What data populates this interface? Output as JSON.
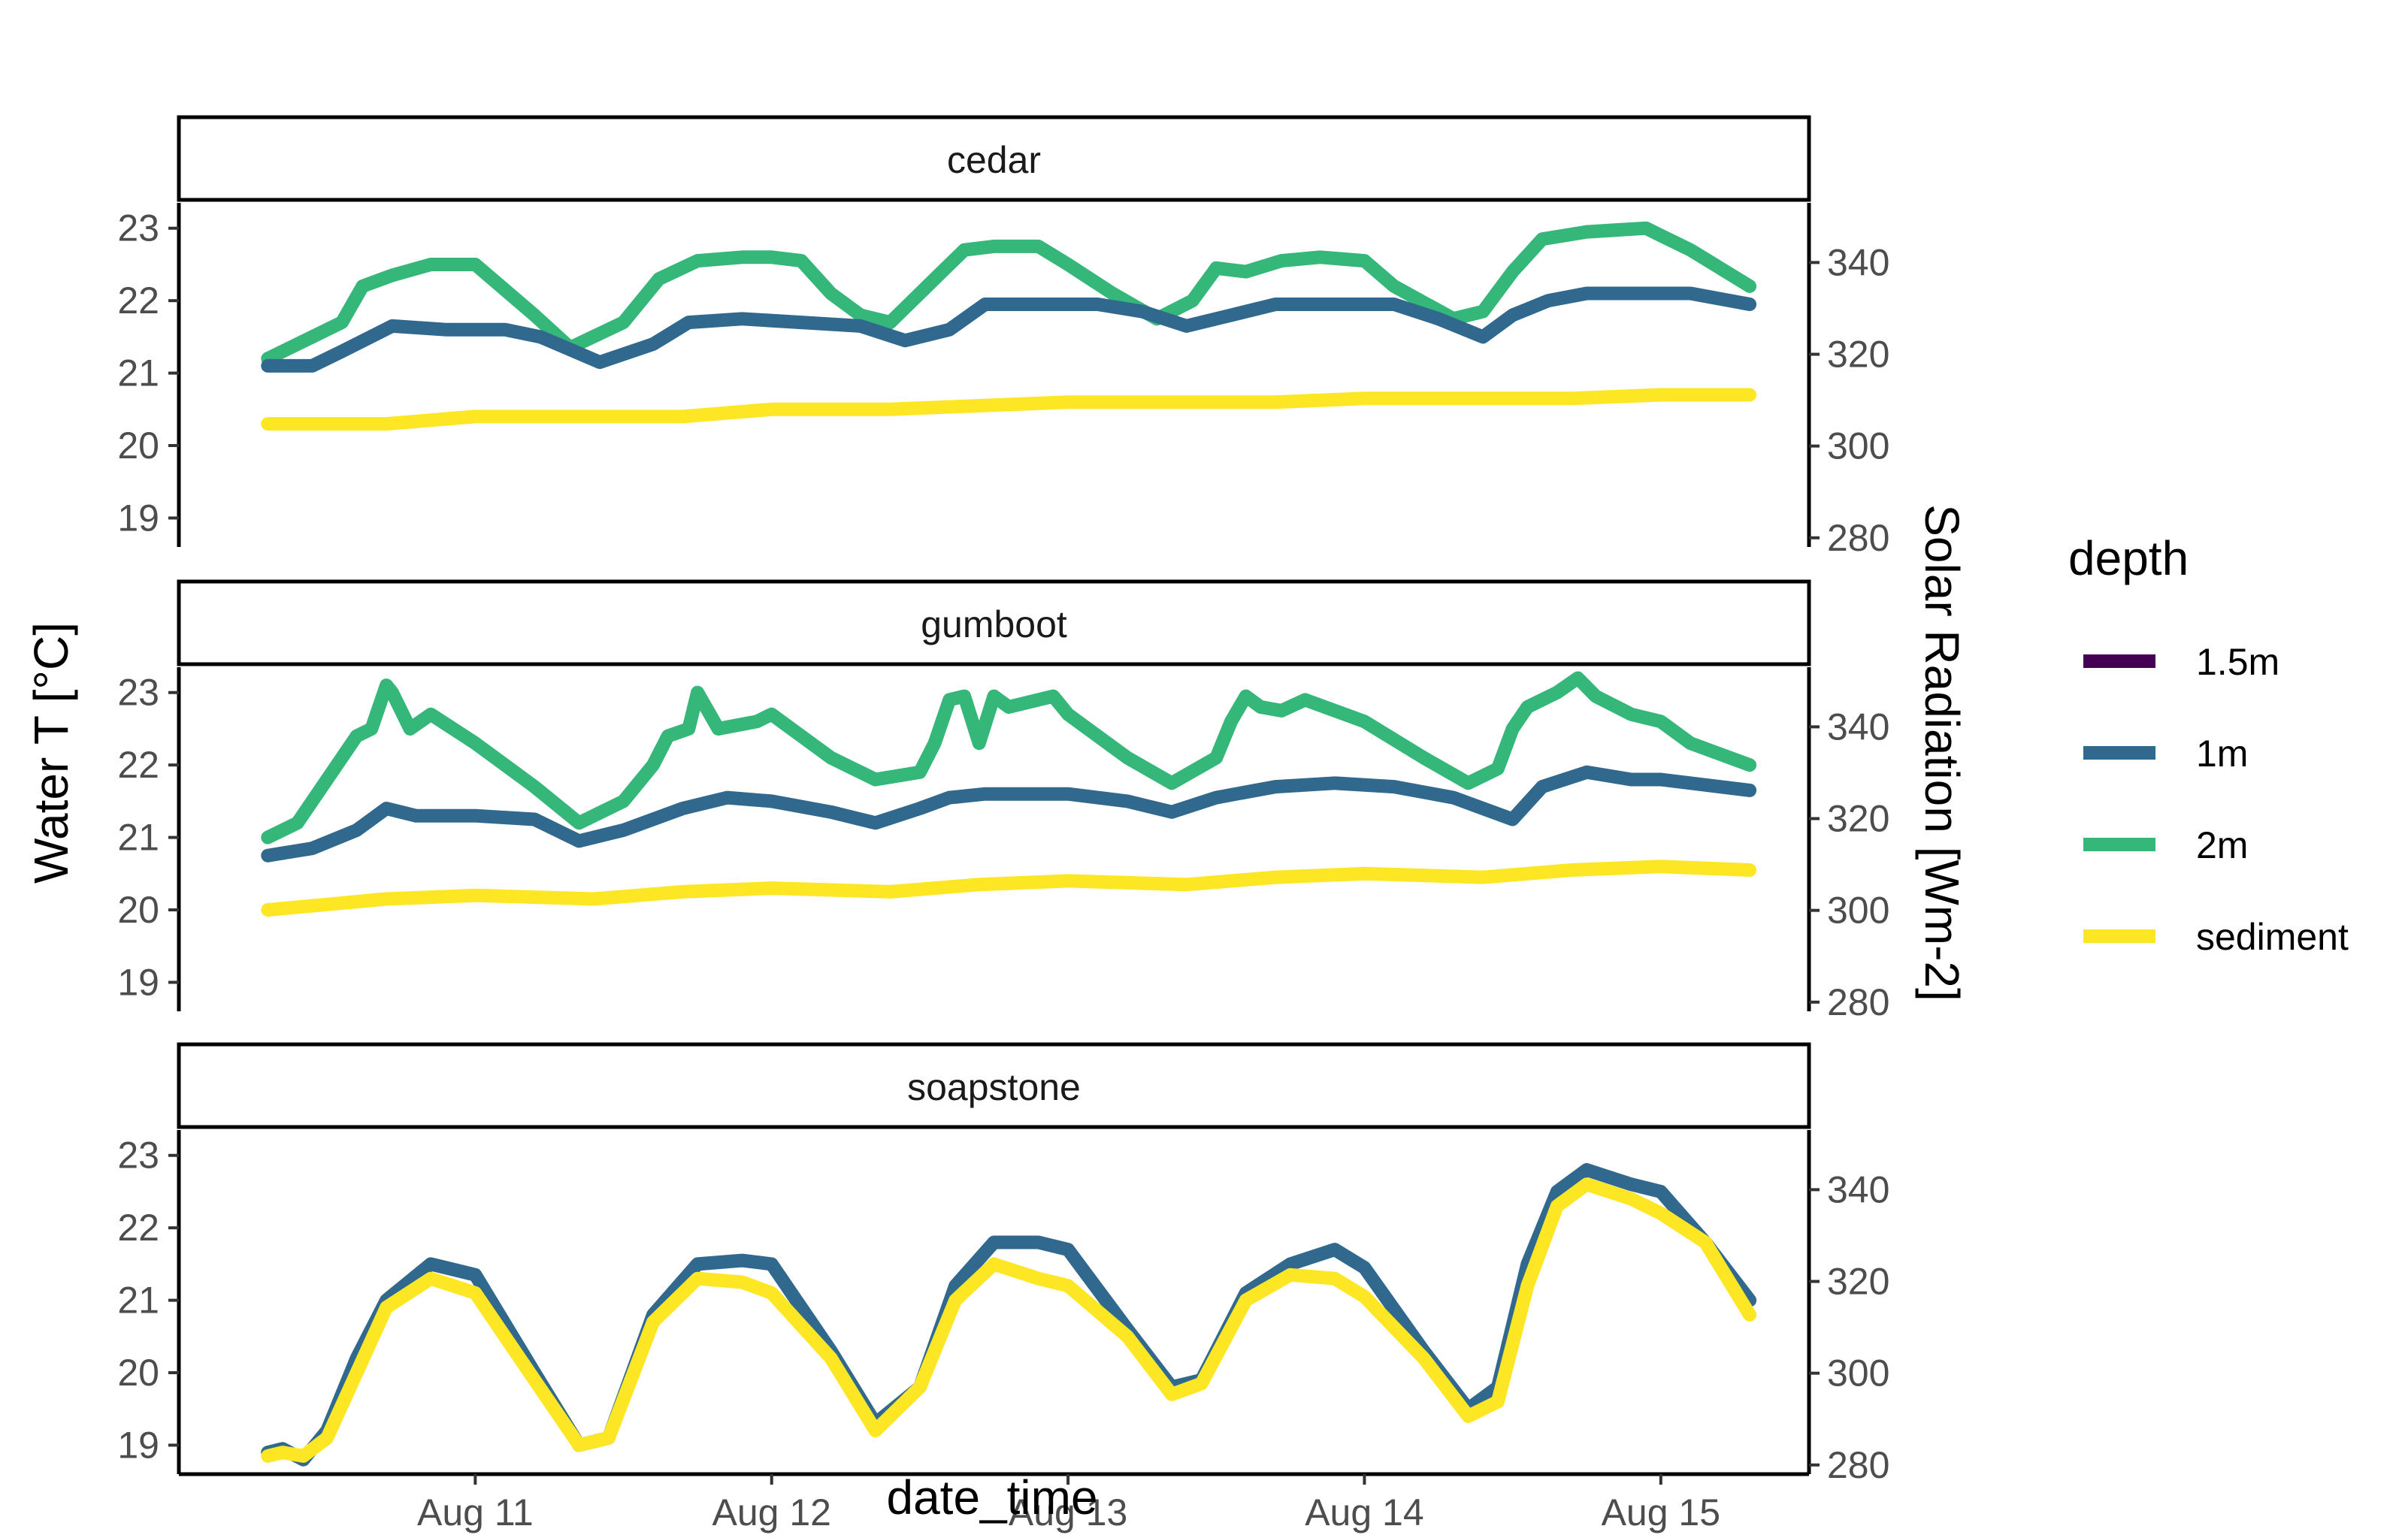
{
  "chart_data": {
    "type": "line",
    "facet_variable": "site",
    "xlabel": "date_time",
    "ylabel_left": "Water T [°C]",
    "ylabel_right": "Solar Radiation [Wm-2]",
    "x_unit": "day of August",
    "x_ticks": [
      {
        "value": 11,
        "label": "Aug 11"
      },
      {
        "value": 12,
        "label": "Aug 12"
      },
      {
        "value": 13,
        "label": "Aug 13"
      },
      {
        "value": 14,
        "label": "Aug 14"
      },
      {
        "value": 15,
        "label": "Aug 15"
      }
    ],
    "xlim": [
      10.0,
      15.5
    ],
    "y_left_ticks": [
      19,
      20,
      21,
      22,
      23
    ],
    "y_left_lim": [
      18.6,
      23.35
    ],
    "y_right_ticks": [
      280,
      300,
      320,
      340
    ],
    "y_right_lim": [
      278,
      353
    ],
    "grid": false,
    "legend": {
      "title": "depth",
      "position": "right",
      "entries": [
        {
          "name": "1.5m",
          "color": "#440154"
        },
        {
          "name": "1m",
          "color": "#31688e"
        },
        {
          "name": "2m",
          "color": "#35b779"
        },
        {
          "name": "sediment",
          "color": "#fde725"
        }
      ]
    },
    "panels": [
      {
        "strip": "cedar",
        "series": [
          {
            "name": "2m",
            "x": [
              10.3,
              10.45,
              10.55,
              10.62,
              10.72,
              10.85,
              11.0,
              11.2,
              11.32,
              11.5,
              11.62,
              11.75,
              11.9,
              12.0,
              12.1,
              12.2,
              12.3,
              12.4,
              12.55,
              12.65,
              12.75,
              12.9,
              13.0,
              13.15,
              13.3,
              13.42,
              13.5,
              13.6,
              13.72,
              13.85,
              14.0,
              14.1,
              14.3,
              14.4,
              14.5,
              14.6,
              14.75,
              14.95,
              15.0,
              15.1,
              15.3
            ],
            "y": [
              21.2,
              21.5,
              21.7,
              22.2,
              22.35,
              22.5,
              22.5,
              21.8,
              21.35,
              21.7,
              22.3,
              22.55,
              22.6,
              22.6,
              22.55,
              22.1,
              21.8,
              21.7,
              22.3,
              22.7,
              22.75,
              22.75,
              22.5,
              22.1,
              21.75,
              22.0,
              22.45,
              22.4,
              22.55,
              22.6,
              22.55,
              22.2,
              21.75,
              21.85,
              22.4,
              22.85,
              22.95,
              23.0,
              22.9,
              22.7,
              22.2
            ]
          },
          {
            "name": "1m",
            "x": [
              10.3,
              10.45,
              10.55,
              10.72,
              10.9,
              11.1,
              11.22,
              11.42,
              11.6,
              11.72,
              11.9,
              12.1,
              12.3,
              12.45,
              12.6,
              12.72,
              12.9,
              13.1,
              13.25,
              13.4,
              13.55,
              13.7,
              13.9,
              14.1,
              14.25,
              14.4,
              14.5,
              14.62,
              14.75,
              14.95,
              15.1,
              15.3
            ],
            "y": [
              21.1,
              21.1,
              21.3,
              21.65,
              21.6,
              21.6,
              21.5,
              21.15,
              21.4,
              21.7,
              21.75,
              21.7,
              21.65,
              21.45,
              21.6,
              21.95,
              21.95,
              21.95,
              21.85,
              21.65,
              21.8,
              21.95,
              21.95,
              21.95,
              21.75,
              21.5,
              21.8,
              22.0,
              22.1,
              22.1,
              22.1,
              21.95
            ]
          },
          {
            "name": "sediment",
            "x": [
              10.3,
              10.7,
              11.0,
              11.4,
              11.7,
              12.0,
              12.4,
              12.7,
              13.0,
              13.4,
              13.7,
              14.0,
              14.4,
              14.7,
              15.0,
              15.3
            ],
            "y": [
              20.3,
              20.3,
              20.4,
              20.4,
              20.4,
              20.5,
              20.5,
              20.55,
              20.6,
              20.6,
              20.6,
              20.65,
              20.65,
              20.65,
              20.7,
              20.7
            ]
          }
        ]
      },
      {
        "strip": "gumboot",
        "series": [
          {
            "name": "2m",
            "x": [
              10.3,
              10.4,
              10.6,
              10.65,
              10.7,
              10.72,
              10.78,
              10.85,
              11.0,
              11.2,
              11.35,
              11.5,
              11.6,
              11.65,
              11.72,
              11.75,
              11.82,
              11.95,
              12.0,
              12.2,
              12.35,
              12.5,
              12.55,
              12.6,
              12.65,
              12.7,
              12.75,
              12.8,
              12.95,
              13.0,
              13.2,
              13.35,
              13.5,
              13.55,
              13.6,
              13.65,
              13.72,
              13.8,
              14.0,
              14.2,
              14.35,
              14.45,
              14.5,
              14.55,
              14.65,
              14.72,
              14.78,
              14.9,
              15.0,
              15.1,
              15.3
            ],
            "y": [
              21.0,
              21.2,
              22.4,
              22.5,
              23.1,
              23.0,
              22.5,
              22.7,
              22.3,
              21.7,
              21.2,
              21.5,
              22.0,
              22.4,
              22.5,
              23.0,
              22.5,
              22.6,
              22.7,
              22.1,
              21.8,
              21.9,
              22.3,
              22.9,
              22.95,
              22.3,
              22.95,
              22.8,
              22.95,
              22.7,
              22.1,
              21.75,
              22.1,
              22.6,
              22.95,
              22.8,
              22.75,
              22.9,
              22.6,
              22.1,
              21.75,
              21.95,
              22.5,
              22.8,
              23.0,
              23.2,
              22.95,
              22.7,
              22.6,
              22.3,
              22.0
            ]
          },
          {
            "name": "1m",
            "x": [
              10.3,
              10.45,
              10.6,
              10.7,
              10.8,
              11.0,
              11.2,
              11.35,
              11.5,
              11.7,
              11.85,
              12.0,
              12.2,
              12.35,
              12.5,
              12.6,
              12.72,
              12.9,
              13.0,
              13.2,
              13.35,
              13.5,
              13.7,
              13.9,
              14.1,
              14.3,
              14.5,
              14.6,
              14.75,
              14.9,
              15.0,
              15.3
            ],
            "y": [
              20.75,
              20.85,
              21.1,
              21.4,
              21.3,
              21.3,
              21.25,
              20.95,
              21.1,
              21.4,
              21.55,
              21.5,
              21.35,
              21.2,
              21.4,
              21.55,
              21.6,
              21.6,
              21.6,
              21.5,
              21.35,
              21.55,
              21.7,
              21.75,
              21.7,
              21.55,
              21.25,
              21.7,
              21.9,
              21.8,
              21.8,
              21.65
            ]
          },
          {
            "name": "sediment",
            "x": [
              10.3,
              10.7,
              11.0,
              11.4,
              11.7,
              12.0,
              12.4,
              12.7,
              13.0,
              13.4,
              13.7,
              14.0,
              14.4,
              14.7,
              15.0,
              15.3
            ],
            "y": [
              20.0,
              20.15,
              20.2,
              20.15,
              20.25,
              20.3,
              20.25,
              20.35,
              20.4,
              20.35,
              20.45,
              20.5,
              20.45,
              20.55,
              20.6,
              20.55
            ]
          }
        ]
      },
      {
        "strip": "soapstone",
        "series": [
          {
            "name": "1m",
            "x": [
              10.3,
              10.35,
              10.42,
              10.5,
              10.6,
              10.7,
              10.85,
              11.0,
              11.2,
              11.35,
              11.45,
              11.6,
              11.75,
              11.9,
              12.0,
              12.2,
              12.35,
              12.5,
              12.62,
              12.75,
              12.9,
              13.0,
              13.2,
              13.35,
              13.45,
              13.6,
              13.75,
              13.9,
              14.0,
              14.2,
              14.35,
              14.45,
              14.55,
              14.65,
              14.75,
              14.9,
              15.0,
              15.15,
              15.3
            ],
            "y": [
              18.9,
              18.95,
              18.8,
              19.2,
              20.2,
              21.0,
              21.5,
              21.35,
              20.0,
              19.0,
              19.1,
              20.8,
              21.5,
              21.55,
              21.5,
              20.3,
              19.3,
              19.8,
              21.2,
              21.8,
              21.8,
              21.7,
              20.6,
              19.8,
              19.9,
              21.1,
              21.5,
              21.7,
              21.45,
              20.3,
              19.5,
              19.8,
              21.5,
              22.5,
              22.8,
              22.6,
              22.5,
              21.8,
              21.0
            ]
          },
          {
            "name": "sediment",
            "x": [
              10.3,
              10.35,
              10.42,
              10.5,
              10.6,
              10.7,
              10.85,
              11.0,
              11.2,
              11.35,
              11.45,
              11.6,
              11.75,
              11.9,
              12.0,
              12.2,
              12.35,
              12.5,
              12.62,
              12.75,
              12.9,
              13.0,
              13.2,
              13.35,
              13.45,
              13.6,
              13.75,
              13.9,
              14.0,
              14.2,
              14.35,
              14.45,
              14.55,
              14.65,
              14.75,
              14.9,
              15.0,
              15.15,
              15.3
            ],
            "y": [
              18.85,
              18.9,
              18.85,
              19.1,
              20.0,
              20.9,
              21.3,
              21.1,
              19.9,
              19.0,
              19.1,
              20.7,
              21.3,
              21.25,
              21.1,
              20.2,
              19.2,
              19.8,
              21.0,
              21.5,
              21.3,
              21.2,
              20.5,
              19.7,
              19.85,
              21.0,
              21.35,
              21.3,
              21.05,
              20.2,
              19.4,
              19.6,
              21.2,
              22.3,
              22.6,
              22.4,
              22.2,
              21.8,
              20.8
            ]
          }
        ]
      }
    ]
  }
}
